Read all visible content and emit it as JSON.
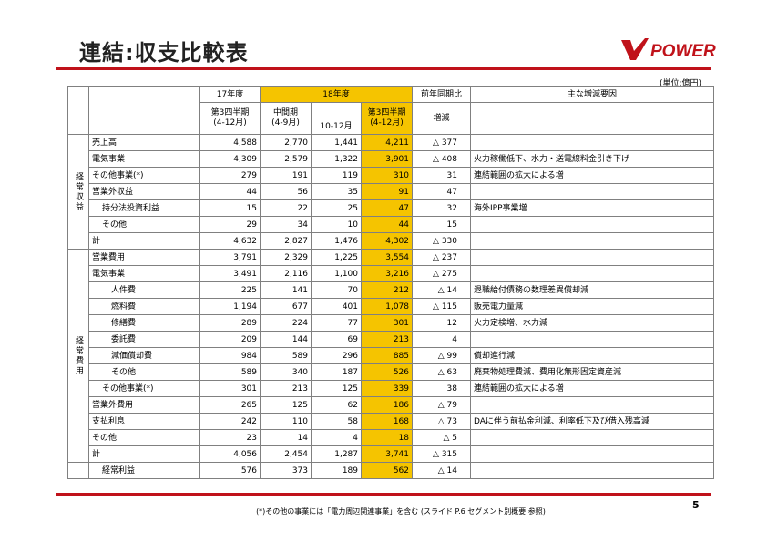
{
  "title": "連結:収支比較表",
  "logo": {
    "text": "POWER",
    "name": "j-power-logo"
  },
  "unit": "(単位:億円)",
  "header": {
    "fy17": "17年度",
    "fy18": "18年度",
    "yoy": "前年同期比",
    "reasons": "主な増減要因",
    "q3_17": "第3四半期\n(4-12月)",
    "h1_18": "中間期\n(4-9月)",
    "q4m": "10-12月",
    "q3_18": "第3四半期\n(4-12月)",
    "change": "増減"
  },
  "categories": {
    "revenue": "経常収益",
    "expense": "経常費用"
  },
  "rows": [
    {
      "label": "売上高",
      "indent": 0,
      "v17": "4,588",
      "h1": "2,770",
      "oct": "1,441",
      "v18": "4,211",
      "chg": "△ 377",
      "reason": ""
    },
    {
      "label": "電気事業",
      "indent": 0,
      "v17": "4,309",
      "h1": "2,579",
      "oct": "1,322",
      "v18": "3,901",
      "chg": "△ 408",
      "reason": "火力稼働低下、水力・送電線料金引き下げ"
    },
    {
      "label": "その他事業(*)",
      "indent": 0,
      "v17": "279",
      "h1": "191",
      "oct": "119",
      "v18": "310",
      "chg": "31",
      "reason": "連結範囲の拡大による増"
    },
    {
      "label": "営業外収益",
      "indent": 0,
      "v17": "44",
      "h1": "56",
      "oct": "35",
      "v18": "91",
      "chg": "47",
      "reason": ""
    },
    {
      "label": "持分法投資利益",
      "indent": 1,
      "v17": "15",
      "h1": "22",
      "oct": "25",
      "v18": "47",
      "chg": "32",
      "reason": "海外IPP事業増"
    },
    {
      "label": "その他",
      "indent": 1,
      "v17": "29",
      "h1": "34",
      "oct": "10",
      "v18": "44",
      "chg": "15",
      "reason": ""
    },
    {
      "label": "計",
      "indent": 0,
      "v17": "4,632",
      "h1": "2,827",
      "oct": "1,476",
      "v18": "4,302",
      "chg": "△ 330",
      "reason": ""
    },
    {
      "label": "営業費用",
      "indent": 0,
      "v17": "3,791",
      "h1": "2,329",
      "oct": "1,225",
      "v18": "3,554",
      "chg": "△ 237",
      "reason": ""
    },
    {
      "label": "電気事業",
      "indent": 0,
      "v17": "3,491",
      "h1": "2,116",
      "oct": "1,100",
      "v18": "3,216",
      "chg": "△ 275",
      "reason": ""
    },
    {
      "label": "人件費",
      "indent": 2,
      "v17": "225",
      "h1": "141",
      "oct": "70",
      "v18": "212",
      "chg": "△ 14",
      "reason": "退職給付債務の数理差異償却減"
    },
    {
      "label": "燃料費",
      "indent": 2,
      "v17": "1,194",
      "h1": "677",
      "oct": "401",
      "v18": "1,078",
      "chg": "△ 115",
      "reason": "販売電力量減"
    },
    {
      "label": "修繕費",
      "indent": 2,
      "v17": "289",
      "h1": "224",
      "oct": "77",
      "v18": "301",
      "chg": "12",
      "reason": "火力定検増、水力減"
    },
    {
      "label": "委託費",
      "indent": 2,
      "v17": "209",
      "h1": "144",
      "oct": "69",
      "v18": "213",
      "chg": "4",
      "reason": ""
    },
    {
      "label": "減価償却費",
      "indent": 2,
      "v17": "984",
      "h1": "589",
      "oct": "296",
      "v18": "885",
      "chg": "△ 99",
      "reason": "償却進行減"
    },
    {
      "label": "その他",
      "indent": 2,
      "v17": "589",
      "h1": "340",
      "oct": "187",
      "v18": "526",
      "chg": "△ 63",
      "reason": "廃棄物処理費減、費用化無形固定資産減"
    },
    {
      "label": "その他事業(*)",
      "indent": 1,
      "v17": "301",
      "h1": "213",
      "oct": "125",
      "v18": "339",
      "chg": "38",
      "reason": "連結範囲の拡大による増"
    },
    {
      "label": "営業外費用",
      "indent": 0,
      "v17": "265",
      "h1": "125",
      "oct": "62",
      "v18": "186",
      "chg": "△ 79",
      "reason": ""
    },
    {
      "label": "支払利息",
      "indent": 0,
      "v17": "242",
      "h1": "110",
      "oct": "58",
      "v18": "168",
      "chg": "△ 73",
      "reason": "DAに伴う前払金利減、利率低下及び借入残高減"
    },
    {
      "label": "その他",
      "indent": 0,
      "v17": "23",
      "h1": "14",
      "oct": "4",
      "v18": "18",
      "chg": "△ 5",
      "reason": ""
    },
    {
      "label": "計",
      "indent": 0,
      "v17": "4,056",
      "h1": "2,454",
      "oct": "1,287",
      "v18": "3,741",
      "chg": "△ 315",
      "reason": ""
    },
    {
      "label": "経常利益",
      "indent": 1,
      "v17": "576",
      "h1": "373",
      "oct": "189",
      "v18": "562",
      "chg": "△ 14",
      "reason": ""
    }
  ],
  "footnote": "(*)その他の事業には「電力周辺関連事業」を含む (スライド P.6 セグメント別概要 参照)",
  "page_number": "5",
  "colors": {
    "accent_red": "#c0121a",
    "highlight": "#f5c400"
  }
}
